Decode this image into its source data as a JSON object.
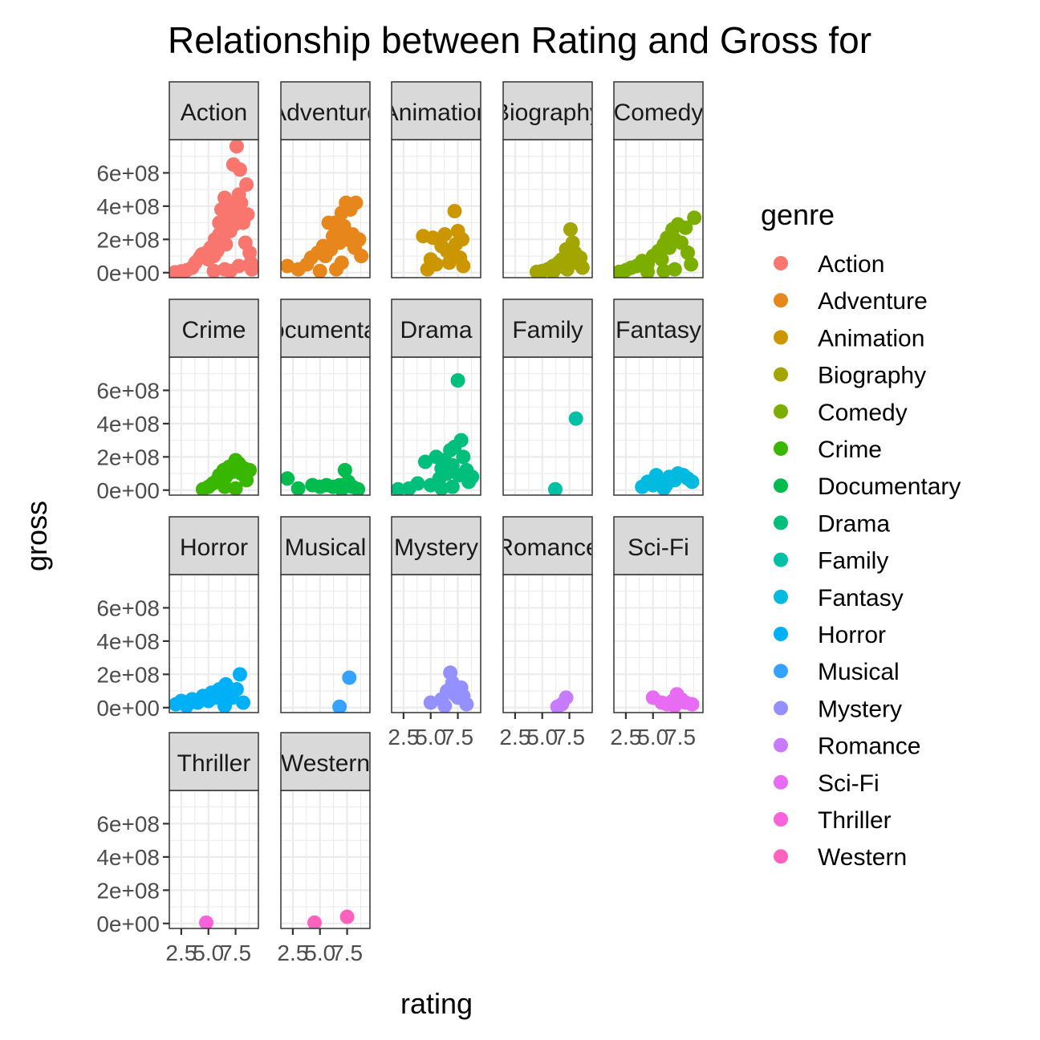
{
  "chart_data": {
    "type": "scatter",
    "title": "Relationship between Rating and Gross for",
    "xlabel": "rating",
    "ylabel": "gross",
    "xlim": [
      1.4,
      9.6
    ],
    "ylim": [
      -30000000,
      800000000
    ],
    "x_ticks": [
      2.5,
      5.0,
      7.5
    ],
    "x_tick_labels": [
      "2.5",
      "5.0",
      "7.5"
    ],
    "y_ticks": [
      0,
      200000000,
      400000000,
      600000000
    ],
    "y_tick_labels": [
      "0e+00",
      "2e+08",
      "4e+08",
      "6e+08"
    ],
    "grid": true,
    "facet_layout": {
      "columns": 5,
      "rows": 4
    },
    "legend": {
      "title": "genre",
      "position": "right"
    },
    "series": [
      {
        "name": "Action",
        "strip": "Action",
        "color": "#F8766D",
        "points": [
          [
            1.9,
            2000000
          ],
          [
            2.5,
            8000000
          ],
          [
            3.0,
            15000000
          ],
          [
            3.5,
            30000000
          ],
          [
            3.8,
            60000000
          ],
          [
            4.2,
            90000000
          ],
          [
            4.4,
            110000000
          ],
          [
            4.8,
            120000000
          ],
          [
            5.0,
            80000000
          ],
          [
            5.2,
            150000000
          ],
          [
            5.5,
            100000000
          ],
          [
            5.6,
            200000000
          ],
          [
            5.8,
            130000000
          ],
          [
            6.0,
            230000000
          ],
          [
            6.0,
            300000000
          ],
          [
            6.2,
            380000000
          ],
          [
            6.4,
            260000000
          ],
          [
            6.5,
            450000000
          ],
          [
            6.6,
            170000000
          ],
          [
            6.8,
            330000000
          ],
          [
            6.9,
            400000000
          ],
          [
            7.0,
            420000000
          ],
          [
            7.0,
            250000000
          ],
          [
            7.2,
            380000000
          ],
          [
            7.3,
            650000000
          ],
          [
            7.4,
            290000000
          ],
          [
            7.5,
            360000000
          ],
          [
            7.6,
            760000000
          ],
          [
            7.8,
            470000000
          ],
          [
            7.9,
            620000000
          ],
          [
            8.0,
            420000000
          ],
          [
            8.2,
            300000000
          ],
          [
            8.4,
            180000000
          ],
          [
            8.5,
            530000000
          ],
          [
            8.6,
            350000000
          ],
          [
            8.8,
            120000000
          ],
          [
            8.9,
            60000000
          ],
          [
            9.0,
            20000000
          ],
          [
            6.5,
            20000000
          ],
          [
            7.0,
            10000000
          ],
          [
            7.8,
            40000000
          ],
          [
            5.5,
            10000000
          ]
        ]
      },
      {
        "name": "Adventure",
        "strip": "Adventure",
        "color": "#E7861B",
        "points": [
          [
            2.0,
            40000000
          ],
          [
            3.0,
            20000000
          ],
          [
            3.8,
            50000000
          ],
          [
            4.2,
            90000000
          ],
          [
            4.8,
            120000000
          ],
          [
            5.3,
            160000000
          ],
          [
            5.5,
            100000000
          ],
          [
            5.8,
            300000000
          ],
          [
            6.0,
            140000000
          ],
          [
            6.2,
            220000000
          ],
          [
            6.4,
            300000000
          ],
          [
            6.6,
            250000000
          ],
          [
            6.8,
            180000000
          ],
          [
            7.0,
            360000000
          ],
          [
            7.2,
            280000000
          ],
          [
            7.4,
            420000000
          ],
          [
            7.5,
            200000000
          ],
          [
            7.8,
            380000000
          ],
          [
            8.0,
            230000000
          ],
          [
            8.2,
            150000000
          ],
          [
            8.3,
            420000000
          ],
          [
            8.6,
            200000000
          ],
          [
            8.8,
            100000000
          ],
          [
            6.5,
            20000000
          ],
          [
            7.0,
            60000000
          ],
          [
            5.0,
            10000000
          ]
        ]
      },
      {
        "name": "Animation",
        "strip": "Animation",
        "color": "#CC9600",
        "points": [
          [
            4.3,
            220000000
          ],
          [
            4.7,
            20000000
          ],
          [
            5.0,
            80000000
          ],
          [
            5.2,
            210000000
          ],
          [
            5.5,
            50000000
          ],
          [
            6.0,
            160000000
          ],
          [
            6.3,
            230000000
          ],
          [
            6.5,
            130000000
          ],
          [
            6.7,
            60000000
          ],
          [
            7.0,
            110000000
          ],
          [
            7.2,
            370000000
          ],
          [
            7.5,
            250000000
          ],
          [
            7.7,
            90000000
          ],
          [
            7.9,
            200000000
          ],
          [
            8.0,
            40000000
          ],
          [
            7.3,
            170000000
          ]
        ]
      },
      {
        "name": "Biography",
        "strip": "Biography",
        "color": "#A3A500",
        "points": [
          [
            4.5,
            5000000
          ],
          [
            5.0,
            10000000
          ],
          [
            5.5,
            20000000
          ],
          [
            6.0,
            40000000
          ],
          [
            6.3,
            30000000
          ],
          [
            6.5,
            60000000
          ],
          [
            6.8,
            80000000
          ],
          [
            7.0,
            50000000
          ],
          [
            7.2,
            140000000
          ],
          [
            7.4,
            100000000
          ],
          [
            7.6,
            260000000
          ],
          [
            7.8,
            180000000
          ],
          [
            8.0,
            120000000
          ],
          [
            8.2,
            60000000
          ],
          [
            8.5,
            90000000
          ],
          [
            8.7,
            30000000
          ],
          [
            7.3,
            20000000
          ],
          [
            6.0,
            5000000
          ]
        ]
      },
      {
        "name": "Comedy",
        "strip": "Comedy",
        "color": "#7CAE00",
        "points": [
          [
            1.9,
            5000000
          ],
          [
            2.5,
            15000000
          ],
          [
            3.0,
            30000000
          ],
          [
            3.5,
            40000000
          ],
          [
            4.0,
            70000000
          ],
          [
            4.5,
            50000000
          ],
          [
            5.0,
            100000000
          ],
          [
            5.5,
            130000000
          ],
          [
            5.8,
            80000000
          ],
          [
            6.0,
            170000000
          ],
          [
            6.3,
            210000000
          ],
          [
            6.5,
            150000000
          ],
          [
            6.8,
            260000000
          ],
          [
            7.0,
            200000000
          ],
          [
            7.3,
            290000000
          ],
          [
            7.6,
            180000000
          ],
          [
            8.0,
            270000000
          ],
          [
            8.2,
            120000000
          ],
          [
            8.5,
            50000000
          ],
          [
            8.8,
            330000000
          ],
          [
            7.0,
            20000000
          ],
          [
            6.0,
            10000000
          ],
          [
            4.5,
            5000000
          ]
        ]
      },
      {
        "name": "Crime",
        "strip": "Crime",
        "color": "#39B600",
        "points": [
          [
            4.5,
            5000000
          ],
          [
            5.0,
            20000000
          ],
          [
            5.4,
            40000000
          ],
          [
            5.8,
            60000000
          ],
          [
            6.0,
            90000000
          ],
          [
            6.4,
            120000000
          ],
          [
            6.6,
            80000000
          ],
          [
            6.9,
            140000000
          ],
          [
            7.2,
            110000000
          ],
          [
            7.5,
            180000000
          ],
          [
            7.8,
            160000000
          ],
          [
            8.0,
            100000000
          ],
          [
            8.3,
            130000000
          ],
          [
            8.5,
            60000000
          ],
          [
            8.8,
            120000000
          ],
          [
            6.5,
            20000000
          ],
          [
            7.5,
            10000000
          ]
        ]
      },
      {
        "name": "Documentary",
        "strip": "Documentary",
        "color": "#00BB4E",
        "points": [
          [
            2.0,
            70000000
          ],
          [
            3.0,
            10000000
          ],
          [
            4.3,
            30000000
          ],
          [
            5.0,
            20000000
          ],
          [
            5.6,
            30000000
          ],
          [
            6.2,
            20000000
          ],
          [
            6.8,
            30000000
          ],
          [
            7.3,
            120000000
          ],
          [
            7.6,
            50000000
          ],
          [
            8.0,
            20000000
          ],
          [
            8.5,
            5000000
          ],
          [
            7.0,
            5000000
          ]
        ]
      },
      {
        "name": "Drama",
        "strip": "Drama",
        "color": "#00BF7D",
        "points": [
          [
            2.0,
            5000000
          ],
          [
            3.0,
            10000000
          ],
          [
            3.8,
            40000000
          ],
          [
            4.5,
            170000000
          ],
          [
            5.0,
            30000000
          ],
          [
            5.5,
            200000000
          ],
          [
            5.8,
            70000000
          ],
          [
            6.0,
            130000000
          ],
          [
            6.3,
            180000000
          ],
          [
            6.5,
            100000000
          ],
          [
            6.8,
            240000000
          ],
          [
            7.0,
            150000000
          ],
          [
            7.2,
            260000000
          ],
          [
            7.5,
            660000000
          ],
          [
            7.6,
            90000000
          ],
          [
            7.8,
            300000000
          ],
          [
            8.0,
            200000000
          ],
          [
            8.3,
            120000000
          ],
          [
            8.5,
            50000000
          ],
          [
            8.8,
            80000000
          ],
          [
            7.0,
            20000000
          ],
          [
            6.0,
            10000000
          ]
        ]
      },
      {
        "name": "Family",
        "strip": "Family",
        "color": "#00C1A3",
        "points": [
          [
            6.2,
            5000000
          ],
          [
            8.1,
            430000000
          ]
        ]
      },
      {
        "name": "Fantasy",
        "strip": "Fantasy",
        "color": "#00BAE0",
        "points": [
          [
            4.0,
            20000000
          ],
          [
            4.5,
            50000000
          ],
          [
            5.0,
            30000000
          ],
          [
            5.3,
            90000000
          ],
          [
            5.8,
            60000000
          ],
          [
            6.0,
            10000000
          ],
          [
            6.5,
            80000000
          ],
          [
            7.0,
            60000000
          ],
          [
            7.3,
            100000000
          ],
          [
            7.8,
            90000000
          ],
          [
            8.2,
            70000000
          ],
          [
            8.6,
            50000000
          ],
          [
            6.2,
            30000000
          ]
        ]
      },
      {
        "name": "Horror",
        "strip": "Horror",
        "color": "#00B0F6",
        "points": [
          [
            2.0,
            20000000
          ],
          [
            2.5,
            40000000
          ],
          [
            3.0,
            10000000
          ],
          [
            3.5,
            50000000
          ],
          [
            4.0,
            30000000
          ],
          [
            4.5,
            70000000
          ],
          [
            5.0,
            40000000
          ],
          [
            5.3,
            90000000
          ],
          [
            5.7,
            60000000
          ],
          [
            6.0,
            110000000
          ],
          [
            6.3,
            80000000
          ],
          [
            6.6,
            140000000
          ],
          [
            7.0,
            100000000
          ],
          [
            7.2,
            60000000
          ],
          [
            7.6,
            110000000
          ],
          [
            7.9,
            200000000
          ],
          [
            8.2,
            30000000
          ],
          [
            6.5,
            10000000
          ]
        ]
      },
      {
        "name": "Musical",
        "strip": "Musical",
        "color": "#35A2FF",
        "points": [
          [
            6.8,
            5000000
          ],
          [
            7.7,
            180000000
          ]
        ]
      },
      {
        "name": "Mystery",
        "strip": "Mystery",
        "color": "#9590FF",
        "points": [
          [
            5.0,
            30000000
          ],
          [
            6.0,
            50000000
          ],
          [
            6.5,
            100000000
          ],
          [
            6.8,
            210000000
          ],
          [
            7.0,
            150000000
          ],
          [
            7.2,
            80000000
          ],
          [
            7.5,
            60000000
          ],
          [
            7.8,
            120000000
          ],
          [
            8.0,
            70000000
          ],
          [
            8.3,
            20000000
          ],
          [
            6.3,
            10000000
          ]
        ]
      },
      {
        "name": "Romance",
        "strip": "Romance",
        "color": "#C77CFF",
        "points": [
          [
            6.4,
            5000000
          ],
          [
            6.8,
            20000000
          ],
          [
            7.2,
            60000000
          ]
        ]
      },
      {
        "name": "Sci-Fi",
        "strip": "Sci-Fi",
        "color": "#E76BF3",
        "points": [
          [
            5.0,
            60000000
          ],
          [
            5.8,
            30000000
          ],
          [
            6.3,
            20000000
          ],
          [
            6.8,
            40000000
          ],
          [
            7.2,
            80000000
          ],
          [
            7.6,
            50000000
          ],
          [
            8.0,
            30000000
          ],
          [
            8.6,
            20000000
          ],
          [
            7.0,
            10000000
          ]
        ]
      },
      {
        "name": "Thriller",
        "strip": "Thriller",
        "color": "#FA62DB",
        "points": [
          [
            4.8,
            5000000
          ]
        ]
      },
      {
        "name": "Western",
        "strip": "Western",
        "color": "#FF62BC",
        "points": [
          [
            4.5,
            5000000
          ],
          [
            7.5,
            40000000
          ]
        ]
      }
    ]
  }
}
